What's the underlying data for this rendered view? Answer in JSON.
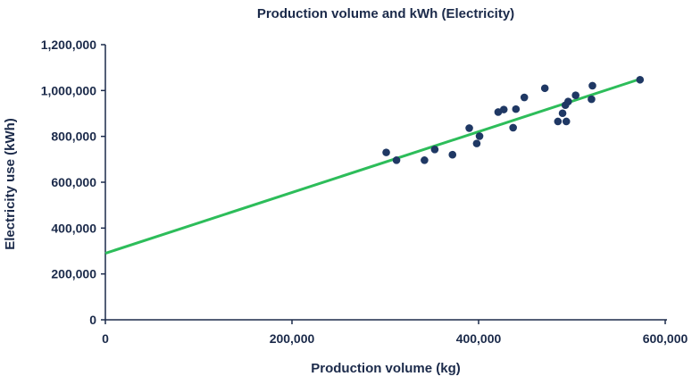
{
  "chart_data": {
    "type": "scatter",
    "title": "Production volume and kWh (Electricity)",
    "xlabel": "Production volume (kg)",
    "ylabel": "Electricity use (kWh)",
    "xlim": [
      0,
      600000
    ],
    "ylim": [
      0,
      1200000
    ],
    "xticks": [
      0,
      200000,
      400000,
      600000
    ],
    "xtick_labels": [
      "0",
      "200,000",
      "400,000",
      "600,000"
    ],
    "yticks": [
      0,
      200000,
      400000,
      600000,
      800000,
      1000000,
      1200000
    ],
    "ytick_labels": [
      "0",
      "200,000",
      "400,000",
      "600,000",
      "800,000",
      "1,000,000",
      "1,200,000"
    ],
    "grid": false,
    "colors": {
      "points": "#1f3864",
      "trendline": "#2dbd5a",
      "text": "#1b2a4a",
      "axis": "#1b2a4a"
    },
    "points": [
      [
        301000,
        730000
      ],
      [
        312000,
        696000
      ],
      [
        342000,
        696000
      ],
      [
        353000,
        743000
      ],
      [
        372000,
        720000
      ],
      [
        390000,
        836000
      ],
      [
        401000,
        801000
      ],
      [
        398000,
        769000
      ],
      [
        421000,
        906000
      ],
      [
        427000,
        917000
      ],
      [
        440000,
        919000
      ],
      [
        437000,
        838000
      ],
      [
        449000,
        970000
      ],
      [
        471000,
        1010000
      ],
      [
        485000,
        865000
      ],
      [
        494000,
        865000
      ],
      [
        490000,
        901000
      ],
      [
        493000,
        936000
      ],
      [
        496000,
        952000
      ],
      [
        504000,
        979000
      ],
      [
        522000,
        1021000
      ],
      [
        521000,
        962000
      ],
      [
        573000,
        1047000
      ]
    ],
    "trendline": {
      "x": [
        0,
        573000
      ],
      "y": [
        290000,
        1050000
      ]
    }
  }
}
